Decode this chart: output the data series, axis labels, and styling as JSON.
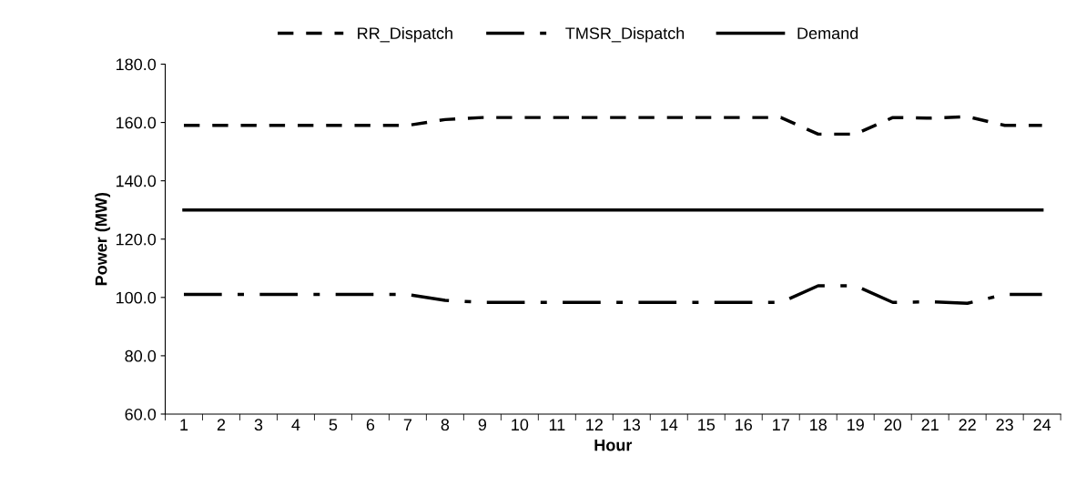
{
  "chart_data": {
    "type": "line",
    "xlabel": "Hour",
    "ylabel": "Power (MW)",
    "categories": [
      "1",
      "2",
      "3",
      "4",
      "5",
      "6",
      "7",
      "8",
      "9",
      "10",
      "11",
      "12",
      "13",
      "14",
      "15",
      "16",
      "17",
      "18",
      "19",
      "20",
      "21",
      "22",
      "23",
      "24"
    ],
    "series": [
      {
        "name": "RR_Dispatch",
        "color": "#000000",
        "line_style": "dashed",
        "values": [
          159,
          159,
          159,
          159,
          159,
          159,
          159,
          161,
          161.7,
          161.7,
          161.7,
          161.7,
          161.7,
          161.7,
          161.7,
          161.7,
          161.7,
          156,
          156,
          161.7,
          161.5,
          162,
          159,
          159
        ]
      },
      {
        "name": "TMSR_Dispatch",
        "color": "#000000",
        "line_style": "dashdot",
        "values": [
          101,
          101,
          101,
          101,
          101,
          101,
          101,
          99,
          98.3,
          98.3,
          98.3,
          98.3,
          98.3,
          98.3,
          98.3,
          98.3,
          98.3,
          104,
          104,
          98.3,
          98.5,
          98,
          101,
          101
        ]
      },
      {
        "name": "Demand",
        "color": "#000000",
        "line_style": "solid",
        "values": [
          130,
          130,
          130,
          130,
          130,
          130,
          130,
          130,
          130,
          130,
          130,
          130,
          130,
          130,
          130,
          130,
          130,
          130,
          130,
          130,
          130,
          130,
          130,
          130
        ]
      }
    ],
    "ylim": [
      60,
      180
    ],
    "yticks": [
      {
        "value": 60,
        "label": "60.0"
      },
      {
        "value": 80,
        "label": "80.0"
      },
      {
        "value": 100,
        "label": "100.0"
      },
      {
        "value": 120,
        "label": "120.0"
      },
      {
        "value": 140,
        "label": "140.0"
      },
      {
        "value": 160,
        "label": "160.0"
      },
      {
        "value": 180,
        "label": "180.0"
      }
    ],
    "grid": false,
    "legend": "top",
    "marker": "none"
  }
}
